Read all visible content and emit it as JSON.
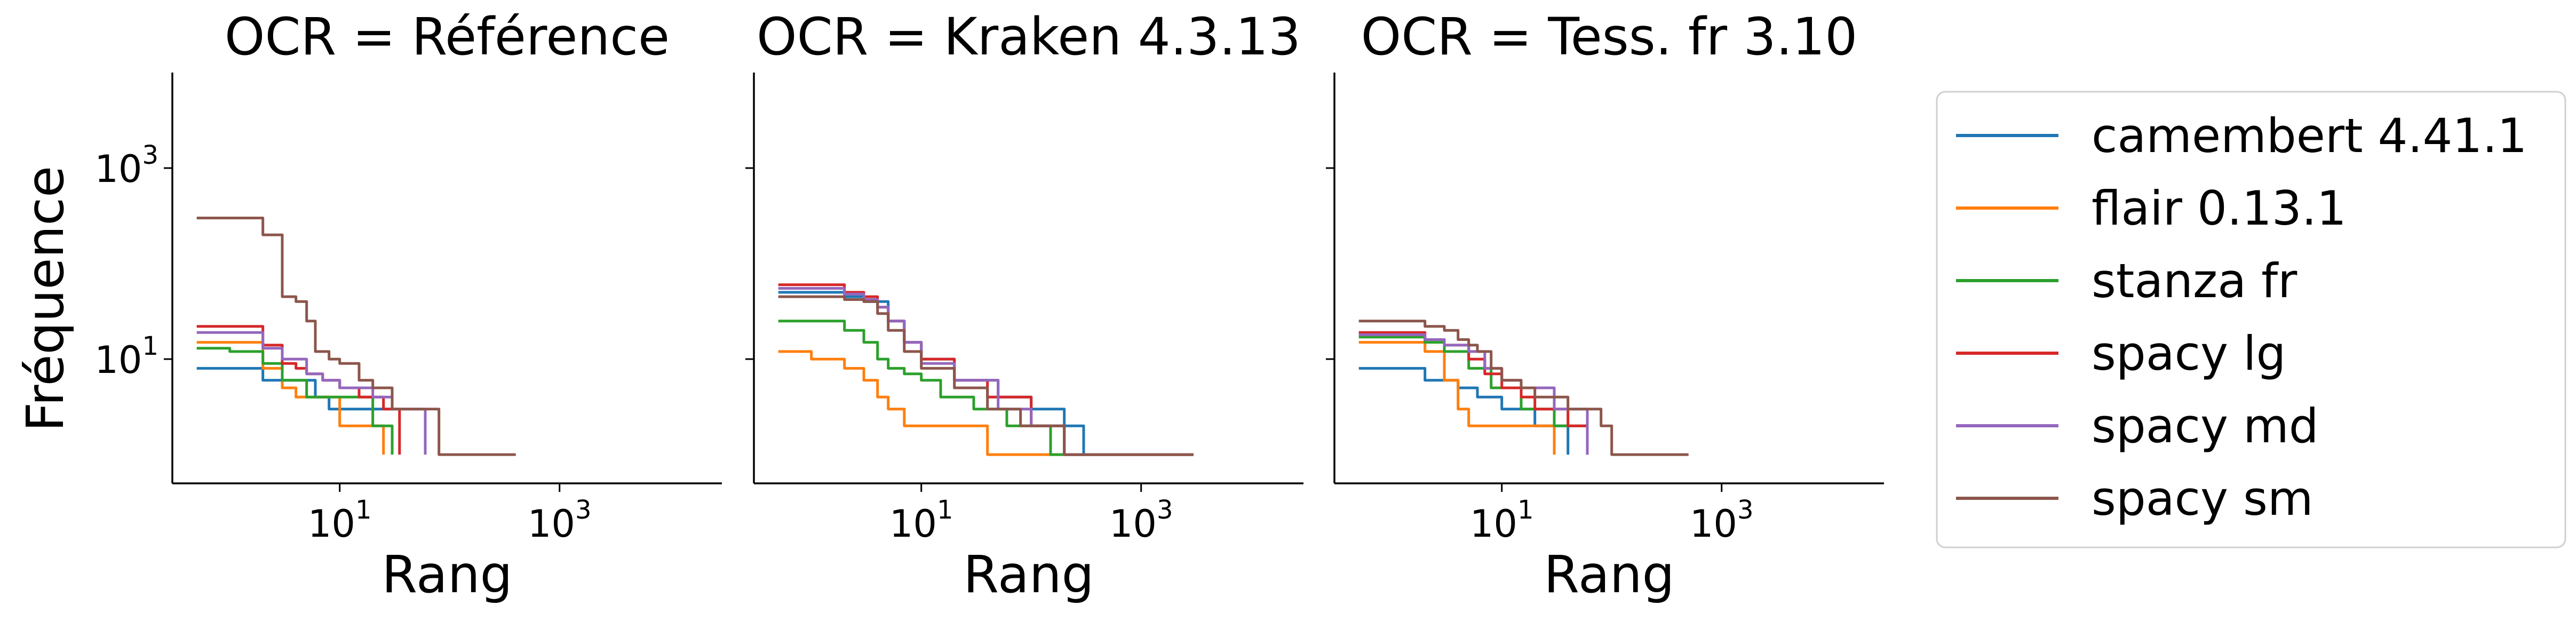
{
  "chart_data": {
    "type": "line",
    "ylabel": "Fréquence",
    "x_scale": "log",
    "y_scale": "log",
    "xlim": [
      0.3,
      30000
    ],
    "ylim": [
      0.5,
      10000
    ],
    "x_ticks": [
      {
        "base": "10",
        "exp": "1",
        "value": 10
      },
      {
        "base": "10",
        "exp": "3",
        "value": 1000
      }
    ],
    "y_ticks": [
      {
        "base": "10",
        "exp": "1",
        "value": 10
      },
      {
        "base": "10",
        "exp": "3",
        "value": 1000
      }
    ],
    "legend_position": "right",
    "legend": [
      "camembert 4.41.1",
      "flair 0.13.1",
      "stanza fr",
      "spacy lg",
      "spacy md",
      "spacy sm"
    ],
    "colors": [
      "#1f77b4",
      "#ff7f0e",
      "#2ca02c",
      "#d62728",
      "#9467bd",
      "#8c564b"
    ],
    "panels": [
      {
        "title": "OCR = Référence",
        "xlabel": "Rang",
        "series": [
          {
            "name": "camembert 4.41.1",
            "x": [
              0.5,
              1,
              2,
              4,
              6,
              8,
              15,
              30
            ],
            "y": [
              8,
              8,
              6,
              6,
              4,
              3,
              3,
              3
            ]
          },
          {
            "name": "flair 0.13.1",
            "x": [
              0.5,
              1,
              2,
              3,
              4,
              6,
              10,
              15,
              25
            ],
            "y": [
              15,
              15,
              8,
              5,
              4,
              4,
              2,
              2,
              1
            ]
          },
          {
            "name": "stanza fr",
            "x": [
              0.5,
              1,
              2,
              3,
              5,
              10,
              20,
              30
            ],
            "y": [
              13,
              12,
              9,
              6,
              4,
              4,
              2,
              1
            ]
          },
          {
            "name": "spacy lg",
            "x": [
              0.5,
              1,
              2,
              3,
              4,
              5,
              7,
              10,
              15,
              25,
              35
            ],
            "y": [
              22,
              22,
              14,
              9,
              8,
              7,
              6,
              5,
              4,
              3,
              1
            ]
          },
          {
            "name": "spacy md",
            "x": [
              0.5,
              1,
              2,
              3,
              5,
              7,
              10,
              20,
              30,
              60
            ],
            "y": [
              19,
              19,
              13,
              10,
              7,
              6,
              5,
              4,
              3,
              1
            ]
          },
          {
            "name": "spacy sm",
            "x": [
              0.5,
              1,
              2,
              3,
              4,
              5,
              6,
              8,
              10,
              15,
              20,
              30,
              60,
              80,
              200,
              400
            ],
            "y": [
              300,
              300,
              200,
              45,
              40,
              25,
              12,
              10,
              9,
              6,
              5,
              3,
              3,
              1,
              1,
              1
            ]
          }
        ]
      },
      {
        "title": "OCR = Kraken 4.3.13",
        "xlabel": "Rang",
        "series": [
          {
            "name": "camembert 4.41.1",
            "x": [
              0.5,
              1,
              2,
              3,
              5,
              7,
              10,
              20,
              50,
              100,
              200,
              300
            ],
            "y": [
              50,
              50,
              45,
              40,
              25,
              15,
              10,
              6,
              4,
              3,
              2,
              1
            ]
          },
          {
            "name": "flair 0.13.1",
            "x": [
              0.5,
              1,
              2,
              3,
              4,
              5,
              7,
              10,
              20,
              40,
              100,
              300,
              3000
            ],
            "y": [
              12,
              10,
              8,
              6,
              4,
              3,
              2,
              2,
              2,
              1,
              1,
              1,
              1
            ]
          },
          {
            "name": "stanza fr",
            "x": [
              0.5,
              1,
              2,
              3,
              4,
              5,
              7,
              10,
              15,
              30,
              60,
              150,
              300,
              3000
            ],
            "y": [
              25,
              25,
              20,
              15,
              10,
              8,
              7,
              6,
              4,
              3,
              2,
              1,
              1,
              1
            ]
          },
          {
            "name": "spacy lg",
            "x": [
              0.5,
              1,
              2,
              3,
              4,
              5,
              7,
              10,
              20,
              40,
              100,
              200,
              3000
            ],
            "y": [
              60,
              60,
              50,
              45,
              35,
              25,
              15,
              10,
              6,
              4,
              2,
              1,
              1
            ]
          },
          {
            "name": "spacy md",
            "x": [
              0.5,
              1,
              2,
              3,
              4,
              5,
              7,
              10,
              20,
              50,
              100,
              200,
              3000
            ],
            "y": [
              55,
              55,
              48,
              42,
              35,
              25,
              15,
              9,
              6,
              3,
              2,
              1,
              1
            ]
          },
          {
            "name": "spacy sm",
            "x": [
              0.5,
              1,
              2,
              3,
              4,
              5,
              7,
              10,
              20,
              40,
              80,
              200,
              3000
            ],
            "y": [
              45,
              45,
              42,
              40,
              30,
              20,
              12,
              8,
              5,
              3,
              2,
              1,
              1
            ]
          }
        ]
      },
      {
        "title": "OCR = Tess. fr 3.10",
        "xlabel": "Rang",
        "series": [
          {
            "name": "camembert 4.41.1",
            "x": [
              0.5,
              1,
              2,
              3,
              4,
              6,
              10,
              15,
              20,
              40
            ],
            "y": [
              8,
              8,
              6,
              6,
              5,
              4,
              3,
              3,
              2,
              1
            ]
          },
          {
            "name": "flair 0.13.1",
            "x": [
              0.5,
              1,
              2,
              3,
              4,
              5,
              10,
              20,
              30
            ],
            "y": [
              15,
              15,
              12,
              6,
              3,
              2,
              2,
              2,
              1
            ]
          },
          {
            "name": "stanza fr",
            "x": [
              0.5,
              1,
              2,
              3,
              5,
              8,
              15,
              30,
              60
            ],
            "y": [
              17,
              17,
              15,
              12,
              8,
              5,
              3,
              2,
              1
            ]
          },
          {
            "name": "spacy lg",
            "x": [
              0.5,
              1,
              2,
              3,
              5,
              7,
              10,
              15,
              20,
              40,
              60
            ],
            "y": [
              19,
              19,
              16,
              14,
              10,
              7,
              5,
              4,
              3,
              2,
              1
            ]
          },
          {
            "name": "spacy md",
            "x": [
              0.5,
              1,
              2,
              3,
              5,
              7,
              10,
              15,
              30,
              60
            ],
            "y": [
              18,
              18,
              16,
              14,
              12,
              8,
              6,
              5,
              3,
              1
            ]
          },
          {
            "name": "spacy sm",
            "x": [
              0.5,
              1,
              2,
              3,
              4,
              5,
              6,
              8,
              10,
              15,
              20,
              40,
              80,
              100,
              500
            ],
            "y": [
              25,
              25,
              22,
              20,
              16,
              14,
              12,
              8,
              6,
              5,
              4,
              3,
              2,
              1,
              1
            ]
          }
        ]
      }
    ]
  }
}
